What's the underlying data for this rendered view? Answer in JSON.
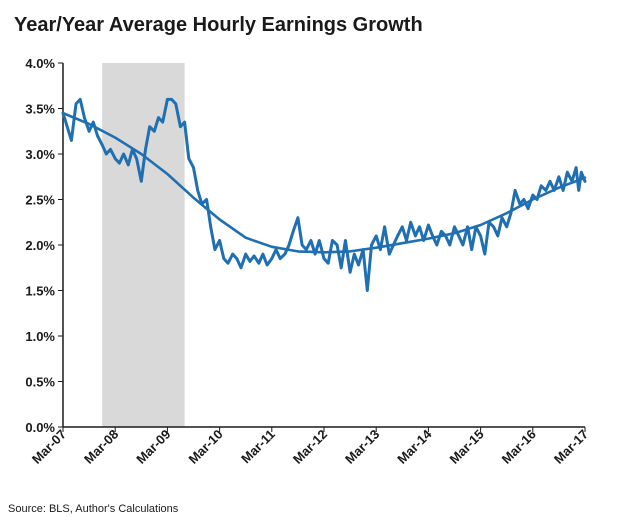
{
  "chart_data": {
    "type": "line",
    "title": "Year/Year Average Hourly Earnings Growth",
    "source": "Source: BLS, Author's Calculations",
    "xlabel": "",
    "ylabel": "",
    "ylim": [
      0,
      4
    ],
    "xlim": [
      2007.17,
      2017.17
    ],
    "y_ticks": [
      "0.0%",
      "0.5%",
      "1.0%",
      "1.5%",
      "2.0%",
      "2.5%",
      "3.0%",
      "3.5%",
      "4.0%"
    ],
    "y_tick_values": [
      0,
      0.5,
      1,
      1.5,
      2,
      2.5,
      3,
      3.5,
      4
    ],
    "x_ticks": [
      "Mar-07",
      "Mar-08",
      "Mar-09",
      "Mar-10",
      "Mar-11",
      "Mar-12",
      "Mar-13",
      "Mar-14",
      "Mar-15",
      "Mar-16",
      "Mar-17"
    ],
    "x_tick_values": [
      2007.17,
      2008.17,
      2009.17,
      2010.17,
      2011.17,
      2012.17,
      2013.17,
      2014.17,
      2015.17,
      2016.17,
      2017.17
    ],
    "recession_band": [
      2007.92,
      2009.5
    ],
    "colors": {
      "line": "#1f6fb2",
      "recession": "#d9d9d9",
      "axis": "#1a1a1a"
    },
    "grid": false,
    "series": [
      {
        "values": [
          [
            2007.17,
            3.45
          ],
          [
            2007.25,
            3.3
          ],
          [
            2007.33,
            3.15
          ],
          [
            2007.42,
            3.55
          ],
          [
            2007.5,
            3.6
          ],
          [
            2007.58,
            3.4
          ],
          [
            2007.67,
            3.25
          ],
          [
            2007.75,
            3.35
          ],
          [
            2007.83,
            3.2
          ],
          [
            2007.92,
            3.1
          ],
          [
            2008.0,
            3.0
          ],
          [
            2008.08,
            3.05
          ],
          [
            2008.17,
            2.95
          ],
          [
            2008.25,
            2.9
          ],
          [
            2008.33,
            3.0
          ],
          [
            2008.42,
            2.88
          ],
          [
            2008.5,
            3.05
          ],
          [
            2008.58,
            2.95
          ],
          [
            2008.67,
            2.7
          ],
          [
            2008.75,
            3.05
          ],
          [
            2008.83,
            3.3
          ],
          [
            2008.92,
            3.25
          ],
          [
            2009.0,
            3.4
          ],
          [
            2009.08,
            3.35
          ],
          [
            2009.17,
            3.6
          ],
          [
            2009.25,
            3.6
          ],
          [
            2009.33,
            3.55
          ],
          [
            2009.42,
            3.3
          ],
          [
            2009.5,
            3.35
          ],
          [
            2009.58,
            2.95
          ],
          [
            2009.67,
            2.85
          ],
          [
            2009.75,
            2.6
          ],
          [
            2009.83,
            2.45
          ],
          [
            2009.92,
            2.5
          ],
          [
            2010.0,
            2.2
          ],
          [
            2010.08,
            1.95
          ],
          [
            2010.17,
            2.05
          ],
          [
            2010.25,
            1.85
          ],
          [
            2010.33,
            1.8
          ],
          [
            2010.42,
            1.9
          ],
          [
            2010.5,
            1.85
          ],
          [
            2010.58,
            1.75
          ],
          [
            2010.67,
            1.9
          ],
          [
            2010.75,
            1.82
          ],
          [
            2010.83,
            1.88
          ],
          [
            2010.92,
            1.8
          ],
          [
            2011.0,
            1.9
          ],
          [
            2011.08,
            1.78
          ],
          [
            2011.17,
            1.85
          ],
          [
            2011.25,
            1.95
          ],
          [
            2011.33,
            1.85
          ],
          [
            2011.42,
            1.9
          ],
          [
            2011.5,
            2.0
          ],
          [
            2011.58,
            2.15
          ],
          [
            2011.67,
            2.3
          ],
          [
            2011.75,
            2.0
          ],
          [
            2011.83,
            1.95
          ],
          [
            2011.92,
            2.05
          ],
          [
            2012.0,
            1.9
          ],
          [
            2012.08,
            2.05
          ],
          [
            2012.17,
            1.85
          ],
          [
            2012.25,
            1.8
          ],
          [
            2012.33,
            2.05
          ],
          [
            2012.42,
            2.0
          ],
          [
            2012.5,
            1.75
          ],
          [
            2012.58,
            2.05
          ],
          [
            2012.67,
            1.7
          ],
          [
            2012.75,
            1.9
          ],
          [
            2012.83,
            1.78
          ],
          [
            2012.92,
            1.95
          ],
          [
            2013.0,
            1.5
          ],
          [
            2013.08,
            2.0
          ],
          [
            2013.17,
            2.1
          ],
          [
            2013.25,
            1.95
          ],
          [
            2013.33,
            2.2
          ],
          [
            2013.42,
            1.9
          ],
          [
            2013.5,
            2.0
          ],
          [
            2013.58,
            2.1
          ],
          [
            2013.67,
            2.2
          ],
          [
            2013.75,
            2.05
          ],
          [
            2013.83,
            2.25
          ],
          [
            2013.92,
            2.1
          ],
          [
            2014.0,
            2.2
          ],
          [
            2014.08,
            2.05
          ],
          [
            2014.17,
            2.22
          ],
          [
            2014.25,
            2.1
          ],
          [
            2014.33,
            2.0
          ],
          [
            2014.42,
            2.15
          ],
          [
            2014.5,
            2.1
          ],
          [
            2014.58,
            2.0
          ],
          [
            2014.67,
            2.2
          ],
          [
            2014.75,
            2.1
          ],
          [
            2014.83,
            2.0
          ],
          [
            2014.92,
            2.2
          ],
          [
            2015.0,
            1.95
          ],
          [
            2015.08,
            2.2
          ],
          [
            2015.17,
            2.1
          ],
          [
            2015.25,
            1.9
          ],
          [
            2015.33,
            2.25
          ],
          [
            2015.42,
            2.2
          ],
          [
            2015.5,
            2.1
          ],
          [
            2015.58,
            2.3
          ],
          [
            2015.67,
            2.2
          ],
          [
            2015.75,
            2.35
          ],
          [
            2015.83,
            2.6
          ],
          [
            2015.92,
            2.45
          ],
          [
            2016.0,
            2.5
          ],
          [
            2016.08,
            2.4
          ],
          [
            2016.17,
            2.55
          ],
          [
            2016.25,
            2.5
          ],
          [
            2016.33,
            2.65
          ],
          [
            2016.42,
            2.6
          ],
          [
            2016.5,
            2.7
          ],
          [
            2016.58,
            2.6
          ],
          [
            2016.67,
            2.75
          ],
          [
            2016.75,
            2.6
          ],
          [
            2016.83,
            2.8
          ],
          [
            2016.92,
            2.7
          ],
          [
            2017.0,
            2.85
          ],
          [
            2017.05,
            2.6
          ],
          [
            2017.1,
            2.8
          ],
          [
            2017.17,
            2.7
          ]
        ]
      },
      {
        "style": "smooth-trend",
        "values": [
          [
            2007.17,
            3.45
          ],
          [
            2007.67,
            3.33
          ],
          [
            2008.17,
            3.18
          ],
          [
            2008.67,
            3.0
          ],
          [
            2009.17,
            2.78
          ],
          [
            2009.67,
            2.52
          ],
          [
            2010.17,
            2.28
          ],
          [
            2010.67,
            2.08
          ],
          [
            2011.17,
            1.98
          ],
          [
            2011.67,
            1.93
          ],
          [
            2012.17,
            1.92
          ],
          [
            2012.67,
            1.93
          ],
          [
            2013.17,
            1.97
          ],
          [
            2013.67,
            2.02
          ],
          [
            2014.17,
            2.07
          ],
          [
            2014.67,
            2.13
          ],
          [
            2015.17,
            2.22
          ],
          [
            2015.67,
            2.35
          ],
          [
            2016.17,
            2.5
          ],
          [
            2016.67,
            2.63
          ],
          [
            2017.17,
            2.74
          ]
        ]
      }
    ]
  }
}
